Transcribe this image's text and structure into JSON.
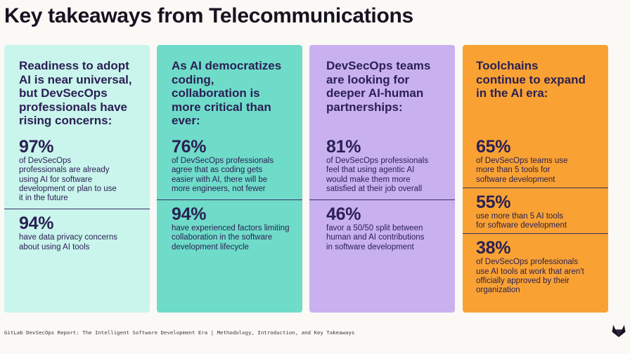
{
  "title": "Key takeaways from Telecommunications",
  "colors": {
    "card1": "#c9f5ec",
    "card2": "#6fdcc9",
    "card3": "#c9b1f0",
    "card4": "#f9a233",
    "text": "#2b2054"
  },
  "cards": [
    {
      "heading": "Readiness to adopt AI is near universal, but DevSecOps professionals have rising concerns:",
      "stats": [
        {
          "value": "97%",
          "desc": "of DevSecOps professionals are already using AI for software development or plan to use it in the future"
        },
        {
          "value": "94%",
          "desc": "have data privacy concerns about using AI tools"
        }
      ]
    },
    {
      "heading": "As AI democratizes coding, collaboration is more critical than ever:",
      "stats": [
        {
          "value": "76%",
          "desc": "of DevSecOps professionals agree that as coding gets easier with AI, there will be more engineers, not fewer"
        },
        {
          "value": "94%",
          "desc": "have experienced factors limiting collaboration in the software development lifecycle"
        }
      ]
    },
    {
      "heading": "DevSecOps teams are looking for deeper AI-human partnerships:",
      "stats": [
        {
          "value": "81%",
          "desc": "of DevSecOps professionals feel that using agentic AI would make them more satisfied at their job overall"
        },
        {
          "value": "46%",
          "desc": "favor a 50/50 split between human and AI contributions in software development"
        }
      ]
    },
    {
      "heading": "Toolchains continue to expand in the AI era:",
      "stats": [
        {
          "value": "65%",
          "desc": "of DevSecOps teams use more than 5 tools for software development"
        },
        {
          "value": "55%",
          "desc": "use more than 5 AI tools for software development"
        },
        {
          "value": "38%",
          "desc": "of DevSecOps professionals use AI tools at work that aren't officially approved by their organization"
        }
      ]
    }
  ],
  "footer": "GitLab DevSecOps Report: The Intelligent Software Development Era | Methodology, Introduction, and Key Takeaways",
  "logo_icon": "gitlab-tanuki-icon"
}
